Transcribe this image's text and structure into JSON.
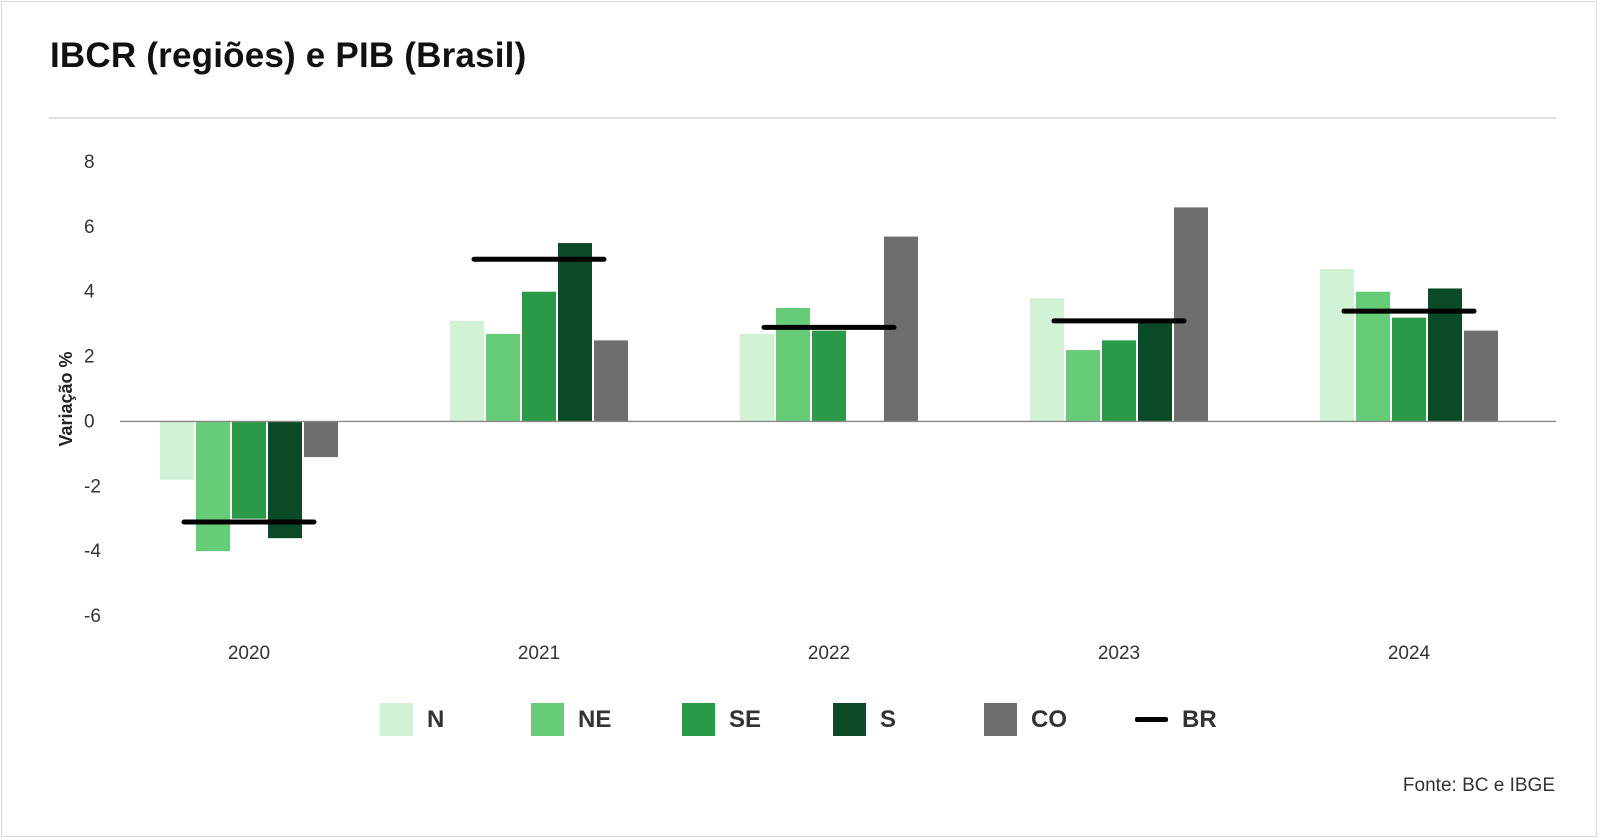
{
  "title": "IBCR (regiões) e PIB (Brasil)",
  "source": "Fonte: BC e IBGE",
  "colors": {
    "N": "#d2f2d6",
    "NE": "#66cc78",
    "SE": "#2a9a48",
    "S": "#0b4a27",
    "CO": "#6e6e6e",
    "BR": "#000000"
  },
  "chart_data": {
    "type": "bar",
    "ylabel": "Variação %",
    "ylim": [
      -6,
      8
    ],
    "yticks": [
      "8",
      "6",
      "4",
      "2",
      "0",
      "-2",
      "-4",
      "-6"
    ],
    "grid": false,
    "legend_position": "bottom",
    "categories": [
      "2020",
      "2021",
      "2022",
      "2023",
      "2024"
    ],
    "series": [
      {
        "name": "N",
        "values": [
          -1.8,
          3.1,
          2.7,
          3.8,
          4.7
        ]
      },
      {
        "name": "NE",
        "values": [
          -4.0,
          2.7,
          3.5,
          2.2,
          4.0
        ]
      },
      {
        "name": "SE",
        "values": [
          -3.0,
          4.0,
          2.8,
          2.5,
          3.2
        ]
      },
      {
        "name": "S",
        "values": [
          -3.6,
          5.5,
          null,
          3.1,
          4.1
        ]
      },
      {
        "name": "CO",
        "values": [
          -1.1,
          2.5,
          5.7,
          6.6,
          2.8
        ]
      }
    ],
    "line_series": {
      "name": "BR",
      "values": [
        -3.1,
        5.0,
        2.9,
        3.1,
        3.4
      ]
    }
  },
  "legend": [
    {
      "label": "N",
      "kind": "swatch",
      "color": "#d2f2d6"
    },
    {
      "label": "NE",
      "kind": "swatch",
      "color": "#66cc78"
    },
    {
      "label": "SE",
      "kind": "swatch",
      "color": "#2a9a48"
    },
    {
      "label": "S",
      "kind": "swatch",
      "color": "#0b4a27"
    },
    {
      "label": "CO",
      "kind": "swatch",
      "color": "#6e6e6e"
    },
    {
      "label": "BR",
      "kind": "line",
      "color": "#000000"
    }
  ]
}
